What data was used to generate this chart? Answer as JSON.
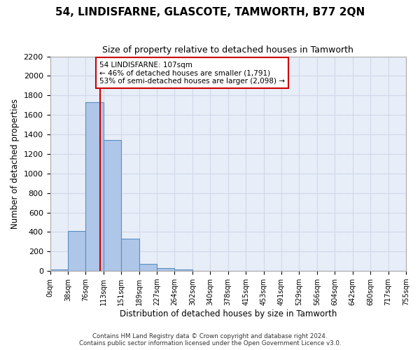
{
  "title": "54, LINDISFARNE, GLASCOTE, TAMWORTH, B77 2QN",
  "subtitle": "Size of property relative to detached houses in Tamworth",
  "xlabel": "Distribution of detached houses by size in Tamworth",
  "ylabel": "Number of detached properties",
  "bin_edges": [
    "0sqm",
    "38sqm",
    "76sqm",
    "113sqm",
    "151sqm",
    "189sqm",
    "227sqm",
    "264sqm",
    "302sqm",
    "340sqm",
    "378sqm",
    "415sqm",
    "453sqm",
    "491sqm",
    "529sqm",
    "566sqm",
    "604sqm",
    "642sqm",
    "680sqm",
    "717sqm",
    "755sqm"
  ],
  "bar_values": [
    15,
    410,
    1730,
    1340,
    330,
    75,
    30,
    15,
    0,
    0,
    0,
    0,
    0,
    0,
    0,
    0,
    0,
    0,
    0,
    0
  ],
  "bar_color": "#aec6e8",
  "bar_edge_color": "#5a8fc2",
  "grid_color": "#d0d8e8",
  "background_color": "#e8eef8",
  "vline_x": 107,
  "bin_width": 38,
  "annotation_text": "54 LINDISFARNE: 107sqm\n← 46% of detached houses are smaller (1,791)\n53% of semi-detached houses are larger (2,098) →",
  "annotation_box_color": "#ffffff",
  "annotation_box_edge": "#cc0000",
  "vline_color": "#cc0000",
  "ylim": [
    0,
    2200
  ],
  "yticks": [
    0,
    200,
    400,
    600,
    800,
    1000,
    1200,
    1400,
    1600,
    1800,
    2000,
    2200
  ],
  "footer_line1": "Contains HM Land Registry data © Crown copyright and database right 2024.",
  "footer_line2": "Contains public sector information licensed under the Open Government Licence v3.0."
}
